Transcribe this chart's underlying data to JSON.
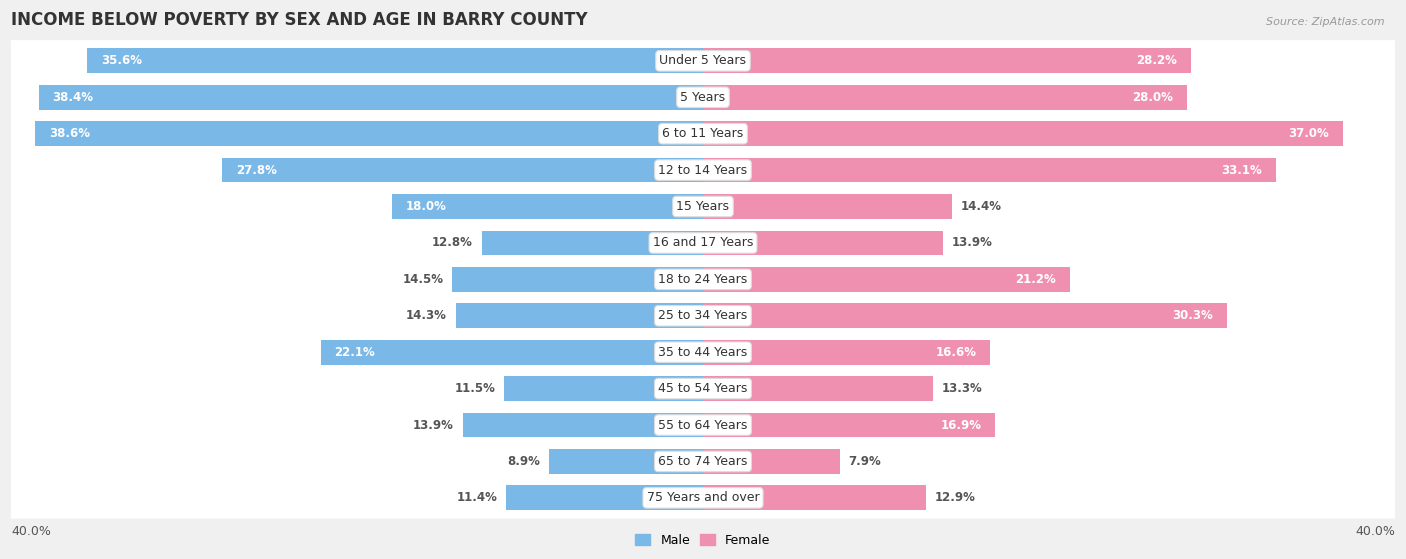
{
  "title": "INCOME BELOW POVERTY BY SEX AND AGE IN BARRY COUNTY",
  "source": "Source: ZipAtlas.com",
  "categories": [
    "Under 5 Years",
    "5 Years",
    "6 to 11 Years",
    "12 to 14 Years",
    "15 Years",
    "16 and 17 Years",
    "18 to 24 Years",
    "25 to 34 Years",
    "35 to 44 Years",
    "45 to 54 Years",
    "55 to 64 Years",
    "65 to 74 Years",
    "75 Years and over"
  ],
  "male": [
    35.6,
    38.4,
    38.6,
    27.8,
    18.0,
    12.8,
    14.5,
    14.3,
    22.1,
    11.5,
    13.9,
    8.9,
    11.4
  ],
  "female": [
    28.2,
    28.0,
    37.0,
    33.1,
    14.4,
    13.9,
    21.2,
    30.3,
    16.6,
    13.3,
    16.9,
    7.9,
    12.9
  ],
  "male_color": "#7ab8e8",
  "female_color": "#f090b0",
  "axis_limit": 40.0,
  "background_color": "#f0f0f0",
  "bar_background": "#ffffff",
  "title_fontsize": 12,
  "label_fontsize": 8.5,
  "cat_fontsize": 9.0,
  "tick_fontsize": 9.0,
  "source_fontsize": 8.0
}
